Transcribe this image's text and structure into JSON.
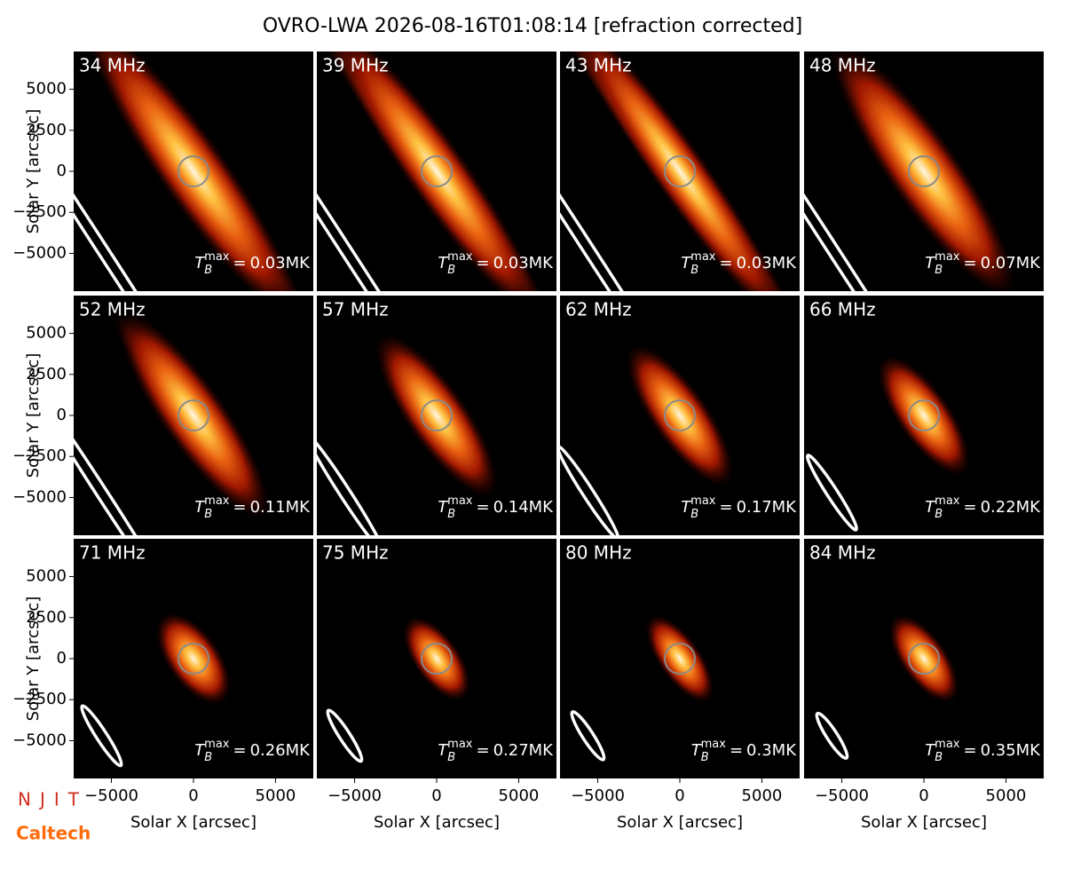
{
  "chart_data": {
    "type": "image",
    "title": "OVRO-LWA 2026-08-16T01:08:14 [refraction corrected]",
    "xlabel": "Solar X [arcsec]",
    "ylabel": "Solar Y [arcsec]",
    "xlim": [
      -7300,
      7300
    ],
    "ylim": [
      -7300,
      7300
    ],
    "xticks": [
      {
        "value": -5000,
        "label": "−5000"
      },
      0,
      5000
    ],
    "yticks": [
      {
        "value": -5000,
        "label": "−5000"
      },
      {
        "value": -2500,
        "label": "−2500"
      },
      0,
      2500,
      5000
    ],
    "tb_symbol": "T",
    "tb_sub": "B",
    "tb_sup": "max",
    "equals": "=",
    "panels": [
      {
        "label": "34 MHz",
        "tmax": "0.03MK"
      },
      {
        "label": "39 MHz",
        "tmax": "0.03MK"
      },
      {
        "label": "43 MHz",
        "tmax": "0.03MK"
      },
      {
        "label": "48 MHz",
        "tmax": "0.07MK"
      },
      {
        "label": "52 MHz",
        "tmax": "0.11MK"
      },
      {
        "label": "57 MHz",
        "tmax": "0.14MK"
      },
      {
        "label": "62 MHz",
        "tmax": "0.17MK"
      },
      {
        "label": "66 MHz",
        "tmax": "0.22MK"
      },
      {
        "label": "71 MHz",
        "tmax": "0.26MK"
      },
      {
        "label": "75 MHz",
        "tmax": "0.27MK"
      },
      {
        "label": "80 MHz",
        "tmax": "0.3MK"
      },
      {
        "label": "84 MHz",
        "tmax": "0.35MK"
      }
    ],
    "logos": [
      "NJIT",
      "Caltech"
    ]
  }
}
